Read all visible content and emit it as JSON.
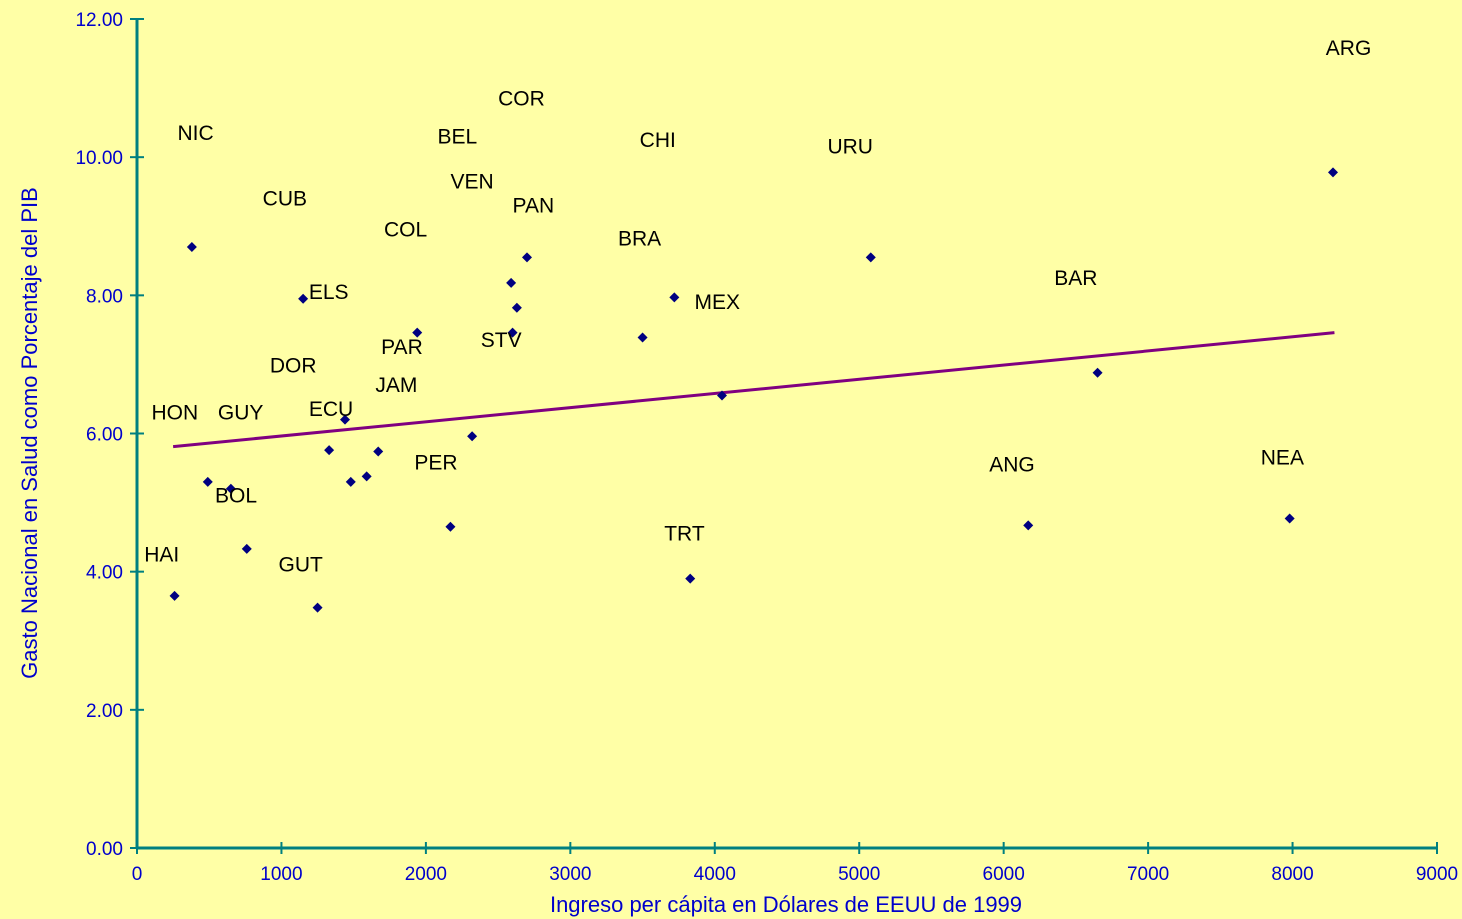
{
  "chart_data": {
    "type": "scatter",
    "title": "",
    "xlabel": "Ingreso per cápita en Dólares de EEUU de 1999",
    "ylabel": "Gasto Nacional en Salud como Porcentaje del PIB",
    "xlim": [
      0,
      9000
    ],
    "ylim": [
      0,
      12
    ],
    "x_ticks": [
      "0",
      "1000",
      "2000",
      "3000",
      "4000",
      "5000",
      "6000",
      "7000",
      "8000",
      "9000"
    ],
    "y_ticks": [
      "0.00",
      "2.00",
      "4.00",
      "6.00",
      "8.00",
      "10.00",
      "12.00"
    ],
    "grid": false,
    "legend": "none",
    "points": [
      {
        "x": 260,
        "y": 3.65
      },
      {
        "x": 380,
        "y": 8.7
      },
      {
        "x": 490,
        "y": 5.3
      },
      {
        "x": 650,
        "y": 5.2
      },
      {
        "x": 760,
        "y": 4.33
      },
      {
        "x": 1150,
        "y": 7.95
      },
      {
        "x": 1250,
        "y": 3.48
      },
      {
        "x": 1330,
        "y": 5.76
      },
      {
        "x": 1440,
        "y": 6.2
      },
      {
        "x": 1480,
        "y": 5.3
      },
      {
        "x": 1590,
        "y": 5.38
      },
      {
        "x": 1670,
        "y": 5.74
      },
      {
        "x": 1940,
        "y": 7.46
      },
      {
        "x": 2170,
        "y": 4.65
      },
      {
        "x": 2320,
        "y": 5.96
      },
      {
        "x": 2590,
        "y": 8.18
      },
      {
        "x": 2600,
        "y": 7.46
      },
      {
        "x": 2630,
        "y": 7.82
      },
      {
        "x": 2700,
        "y": 8.55
      },
      {
        "x": 3500,
        "y": 7.39
      },
      {
        "x": 3720,
        "y": 7.97
      },
      {
        "x": 3830,
        "y": 3.9
      },
      {
        "x": 4050,
        "y": 6.55
      },
      {
        "x": 5080,
        "y": 8.55
      },
      {
        "x": 6170,
        "y": 4.67
      },
      {
        "x": 6650,
        "y": 6.88
      },
      {
        "x": 7980,
        "y": 4.77
      },
      {
        "x": 8280,
        "y": 9.78
      }
    ],
    "annotations": [
      {
        "text": "ARG",
        "x": 8230,
        "y": 11.48
      },
      {
        "text": "COR",
        "x": 2500,
        "y": 10.75
      },
      {
        "text": "NIC",
        "x": 280,
        "y": 10.25
      },
      {
        "text": "BEL",
        "x": 2080,
        "y": 10.2
      },
      {
        "text": "CHI",
        "x": 3480,
        "y": 10.15
      },
      {
        "text": "URU",
        "x": 4780,
        "y": 10.05
      },
      {
        "text": "VEN",
        "x": 2170,
        "y": 9.55
      },
      {
        "text": "CUB",
        "x": 870,
        "y": 9.3
      },
      {
        "text": "PAN",
        "x": 2600,
        "y": 9.2
      },
      {
        "text": "COL",
        "x": 1710,
        "y": 8.85
      },
      {
        "text": "BRA",
        "x": 3330,
        "y": 8.72
      },
      {
        "text": "BAR",
        "x": 6350,
        "y": 8.15
      },
      {
        "text": "ELS",
        "x": 1190,
        "y": 7.95
      },
      {
        "text": "MEX",
        "x": 3860,
        "y": 7.8
      },
      {
        "text": "PAR",
        "x": 1690,
        "y": 7.15
      },
      {
        "text": "STV",
        "x": 2380,
        "y": 7.25
      },
      {
        "text": "DOR",
        "x": 920,
        "y": 6.88
      },
      {
        "text": "JAM",
        "x": 1650,
        "y": 6.6
      },
      {
        "text": "HON",
        "x": 100,
        "y": 6.2
      },
      {
        "text": "GUY",
        "x": 560,
        "y": 6.2
      },
      {
        "text": "ECU",
        "x": 1190,
        "y": 6.25
      },
      {
        "text": "PER",
        "x": 1920,
        "y": 5.48
      },
      {
        "text": "ANG",
        "x": 5900,
        "y": 5.45
      },
      {
        "text": "NEA",
        "x": 7780,
        "y": 5.55
      },
      {
        "text": "BOL",
        "x": 540,
        "y": 5.0
      },
      {
        "text": "TRT",
        "x": 3650,
        "y": 4.45
      },
      {
        "text": "HAI",
        "x": 50,
        "y": 4.15
      },
      {
        "text": "GUT",
        "x": 980,
        "y": 4.0
      }
    ],
    "trendline": {
      "x": [
        250,
        8290
      ],
      "y": [
        5.81,
        7.46
      ]
    },
    "colors": {
      "background": "#FFFFA6",
      "axis": "#008080",
      "tick_label": "#0000CC",
      "marker": "#000080",
      "trendline": "#800080",
      "point_label": "#000000"
    }
  }
}
